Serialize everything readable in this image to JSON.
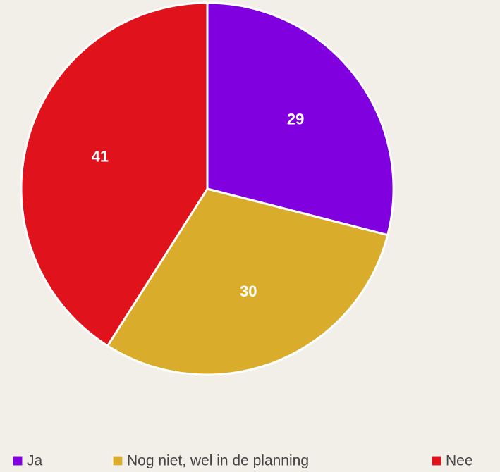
{
  "chart_data": {
    "type": "pie",
    "categories": [
      "Ja",
      "Nog niet, wel in de planning",
      "Nee"
    ],
    "values": [
      29,
      30,
      41
    ],
    "colors": [
      "#8000e0",
      "#d9ad2b",
      "#e0121c"
    ],
    "legend": "bottom"
  }
}
